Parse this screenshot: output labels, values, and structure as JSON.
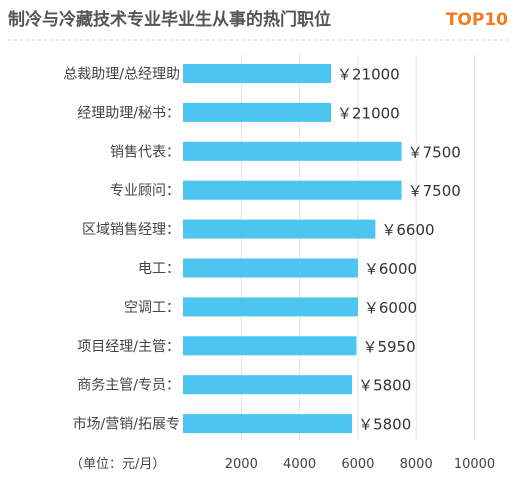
{
  "header": {
    "title": "制冷与冷藏技术专业毕业生从事的热门职位",
    "badge": "TOP10"
  },
  "colors": {
    "bar": "#4cc5f0",
    "badge": "#f37a1f",
    "title": "#555555",
    "grid": "#e3e3e3",
    "divider": "#cccccc"
  },
  "chart_data": {
    "type": "bar",
    "orientation": "horizontal",
    "categories": [
      "总裁助理/总经理助",
      "经理助理/秘书：",
      "销售代表：",
      "专业顾问：",
      "区域销售经理：",
      "电工：",
      "空调工：",
      "项目经理/主管：",
      "商务主管/专员：",
      "市场/营销/拓展专"
    ],
    "values": [
      21000,
      21000,
      7500,
      7500,
      6600,
      6000,
      6000,
      5950,
      5800,
      5800
    ],
    "value_labels": [
      "￥21000",
      "￥21000",
      "￥7500",
      "￥7500",
      "￥6600",
      "￥6000",
      "￥6000",
      "￥5950",
      "￥5800",
      "￥5800"
    ],
    "x_ticks": [
      2000,
      4000,
      6000,
      8000,
      10000
    ],
    "x_tick_labels": [
      "2000",
      "4000",
      "6000",
      "8000",
      "10000"
    ],
    "xlim": [
      0,
      11000
    ],
    "unit_label": "（单位：元/月）",
    "grid": true
  }
}
